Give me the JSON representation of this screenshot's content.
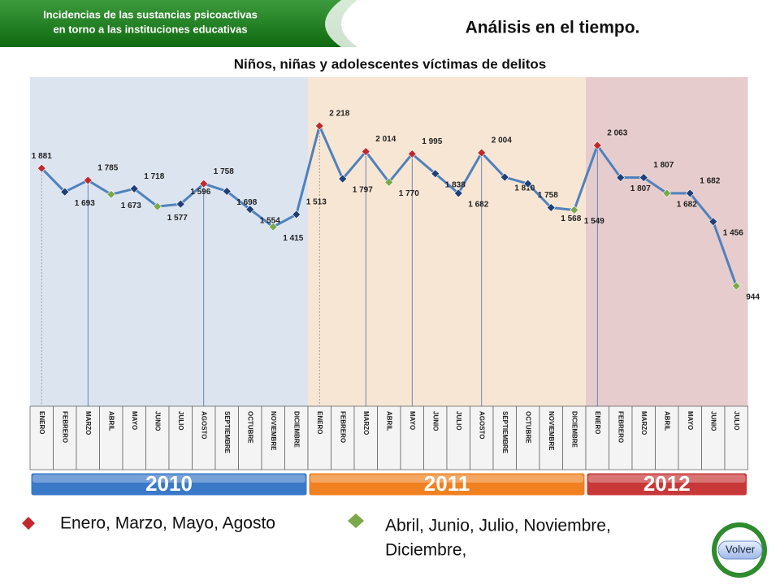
{
  "header": {
    "banner": [
      "Incidencias de  las sustancias psicoactivas",
      "en torno a las instituciones educativas"
    ],
    "title": "Análisis en el tiempo."
  },
  "legend": [
    {
      "label": "Enero, Marzo, Mayo, Agosto",
      "color": "#c0282d"
    },
    {
      "label": "Abril, Junio, Julio, Noviembre,",
      "label2": "Diciembre,",
      "color": "#7aa84a"
    }
  ],
  "button": "Volver",
  "chart_data": {
    "type": "line",
    "title": "Niños, niñas y adolescentes víctimas de delitos",
    "groups": [
      {
        "name": "2010",
        "color": "#3a78c8",
        "band_color": "#dce4f0",
        "categories": [
          "ENERO",
          "FEBRERO",
          "MARZO",
          "ABRIL",
          "MAYO",
          "JUNIO",
          "JULIO",
          "AGOSTO",
          "SEPTIEMBRE",
          "OCTUBRE",
          "NOVIEMBRE",
          "DICIEMBRE"
        ]
      },
      {
        "name": "2011",
        "color": "#f08020",
        "band_color": "#f8e6d4",
        "categories": [
          "ENERO",
          "FEBRERO",
          "MARZO",
          "ABRIL",
          "MAYO",
          "JUNIO",
          "JULIO",
          "AGOSTO",
          "SEPTIEMBRE",
          "OCTUBRE",
          "NOVIEMBRE",
          "DICIEMBRE"
        ]
      },
      {
        "name": "2012",
        "color": "#c83838",
        "band_color": "#e6cccc",
        "categories": [
          "ENERO",
          "FEBRERO",
          "MARZO",
          "ABRIL",
          "MAYO",
          "JUNIO",
          "JULIO"
        ]
      }
    ],
    "color": "#4f81bd",
    "values": [
      1881,
      1693,
      1785,
      1673,
      1718,
      1577,
      1596,
      1758,
      1698,
      1554,
      1415,
      1513,
      2218,
      1797,
      2014,
      1770,
      1995,
      1838,
      1682,
      2004,
      1810,
      1758,
      1568,
      1549,
      2063,
      1807,
      1807,
      1682,
      1682,
      1456,
      944
    ],
    "value_labels": [
      "1 881",
      "1 693",
      "1 785",
      "1 673",
      "1 718",
      "1 577",
      "1 596",
      "1 758",
      "1 698",
      "1 554",
      "1 415",
      "1 513",
      "2 218",
      "1 797",
      "2 014",
      "1 770",
      "1 995",
      "1 838",
      "1 682",
      "2 004",
      "1 810",
      "1 758",
      "1 568",
      "1 549",
      "2 063",
      "1 807",
      "1 807",
      "1 682",
      "1 682",
      "1 456",
      "944"
    ],
    "marker_colors": [
      "#c0282d",
      "#1f3f77",
      "#c0282d",
      "#7aa84a",
      "#1f3f77",
      "#7aa84a",
      "#1f3f77",
      "#c0282d",
      "#1f3f77",
      "#1f3f77",
      "#7aa84a",
      "#1f3f77",
      "#c0282d",
      "#1f3f77",
      "#c0282d",
      "#7aa84a",
      "#c0282d",
      "#1f3f77",
      "#1f3f77",
      "#c0282d",
      "#1f3f77",
      "#1f3f77",
      "#1f3f77",
      "#7aa84a",
      "#c0282d",
      "#1f3f77",
      "#1f3f77",
      "#7aa84a",
      "#1f3f77",
      "#1f3f77",
      "#7aa84a"
    ]
  }
}
